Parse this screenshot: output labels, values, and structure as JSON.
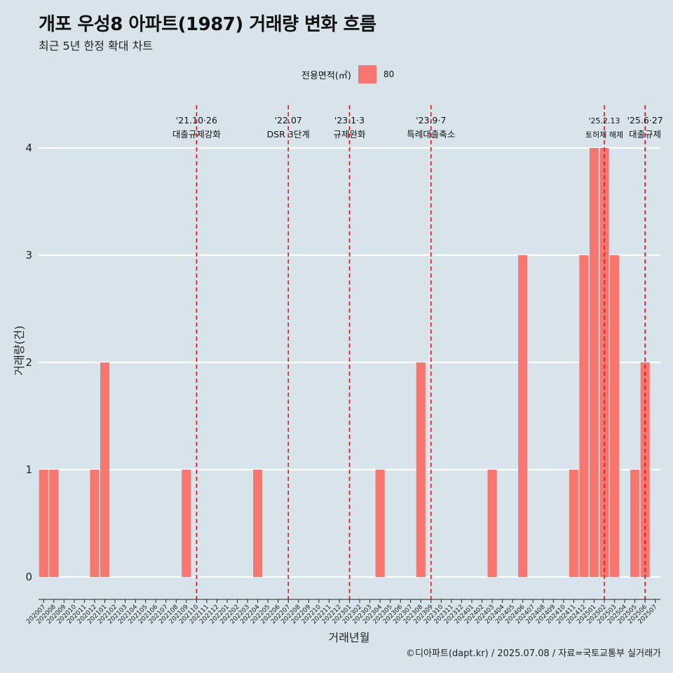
{
  "header": {
    "title": "개포 우성8 아파트(1987) 거래량 변화 흐름",
    "subtitle": "최근 5년 한정 확대 차트"
  },
  "legend": {
    "title": "전용면적(㎡)",
    "label": "80",
    "color": "#f8766d"
  },
  "caption": "©디아파트(dapt.kr) / 2025.07.08 / 자료=국토교통부 실거래가",
  "chart_data": {
    "type": "bar",
    "xlabel": "거래년월",
    "ylabel": "거래량(건)",
    "ylim": [
      0,
      4
    ],
    "yticks": [
      0,
      1,
      2,
      3,
      4
    ],
    "categories": [
      "202007",
      "202008",
      "202009",
      "202010",
      "202011",
      "202012",
      "202101",
      "202102",
      "202103",
      "202104",
      "202105",
      "202106",
      "202107",
      "202108",
      "202109",
      "202110",
      "202111",
      "202112",
      "202201",
      "202202",
      "202203",
      "202204",
      "202205",
      "202206",
      "202207",
      "202208",
      "202209",
      "202210",
      "202211",
      "202212",
      "202301",
      "202302",
      "202303",
      "202304",
      "202305",
      "202306",
      "202307",
      "202308",
      "202309",
      "202310",
      "202311",
      "202312",
      "202401",
      "202402",
      "202403",
      "202404",
      "202405",
      "202406",
      "202407",
      "202408",
      "202409",
      "202410",
      "202411",
      "202412",
      "202501",
      "202502",
      "202503",
      "202504",
      "202505",
      "202506",
      "202507"
    ],
    "series": [
      {
        "name": "80",
        "color": "#f8766d",
        "values": [
          1,
          1,
          0,
          0,
          0,
          1,
          2,
          0,
          0,
          0,
          0,
          0,
          0,
          0,
          1,
          0,
          0,
          0,
          0,
          0,
          0,
          1,
          0,
          0,
          0,
          0,
          0,
          0,
          0,
          0,
          0,
          0,
          0,
          1,
          0,
          0,
          0,
          2,
          0,
          0,
          0,
          0,
          0,
          0,
          1,
          0,
          0,
          3,
          0,
          0,
          0,
          0,
          1,
          3,
          4,
          4,
          3,
          0,
          1,
          2,
          0
        ]
      }
    ],
    "annotations": [
      {
        "x": "202110",
        "line1": "'21.10·26",
        "line2": "대출규제강화",
        "small": false
      },
      {
        "x": "202207",
        "line1": "'22.07",
        "line2": "DSR 3단계",
        "small": false
      },
      {
        "x": "202301",
        "line1": "'23.1·3",
        "line2": "규제완화",
        "small": false
      },
      {
        "x": "202309",
        "line1": "'23.9·7",
        "line2": "특례대출축소",
        "small": false
      },
      {
        "x": "202502",
        "line1": "'25.2.13",
        "line2": "토허제 해제",
        "small": true
      },
      {
        "x": "202506",
        "line1": "'25.6·27",
        "line2": "대출규제",
        "small": false
      }
    ],
    "grid": true,
    "legend_position": "top"
  }
}
